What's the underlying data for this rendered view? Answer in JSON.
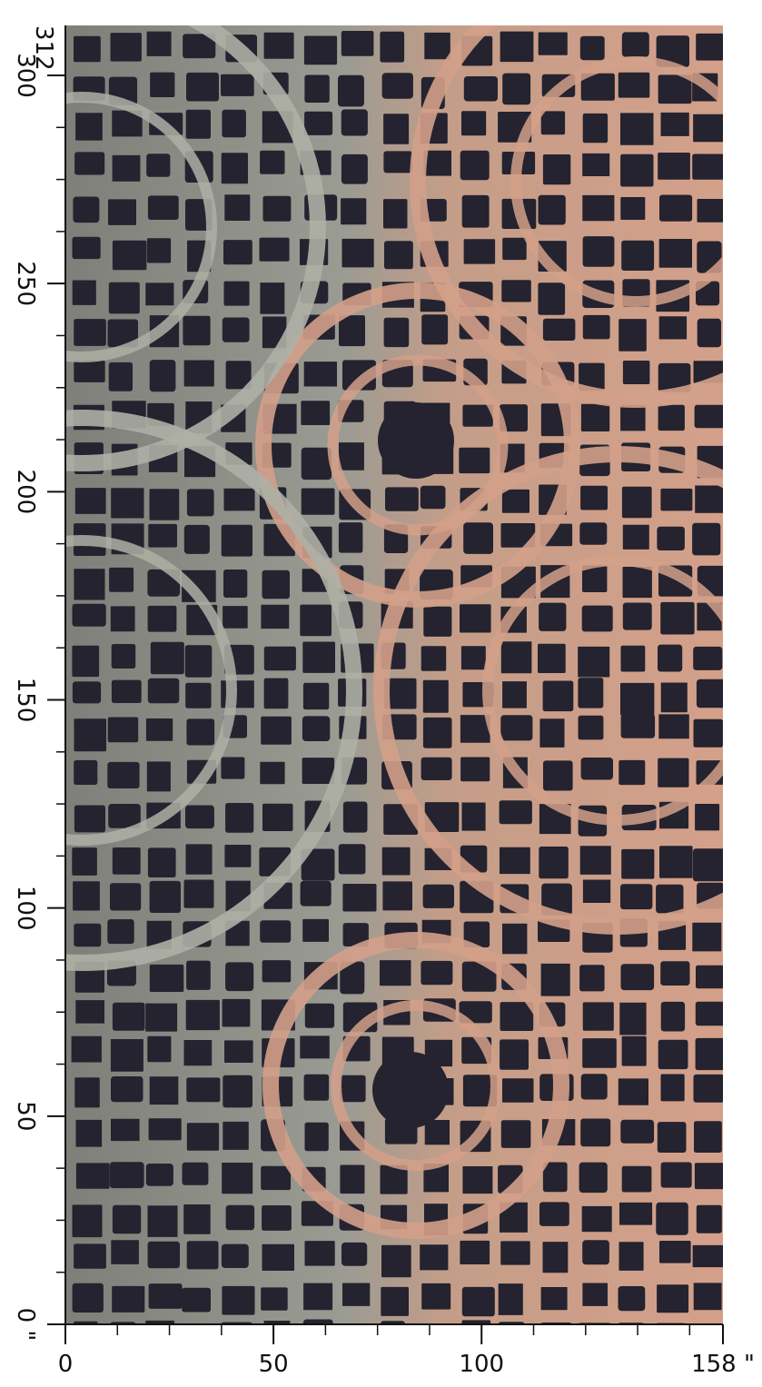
{
  "x_axis": {
    "min": 0,
    "max": 158,
    "unit": "\"",
    "ticks": [
      {
        "value": 0,
        "label": "0"
      },
      {
        "value": 50,
        "label": "50"
      },
      {
        "value": 100,
        "label": "100"
      },
      {
        "value": 158,
        "label": "158 \""
      }
    ]
  },
  "y_axis": {
    "min": 0,
    "max": 312,
    "unit": "\"",
    "ticks": [
      {
        "value": 0,
        "label": "0 \""
      },
      {
        "value": 50,
        "label": "50"
      },
      {
        "value": 100,
        "label": "100"
      },
      {
        "value": 150,
        "label": "150"
      },
      {
        "value": 200,
        "label": "200"
      },
      {
        "value": 250,
        "label": "250"
      },
      {
        "value": 300,
        "label": "300"
      }
    ],
    "max_label": "312"
  },
  "palette": {
    "block": "#24232f",
    "street_gray": "#8a8a84",
    "street_light": "#aeb0a6",
    "street_salmon": "#d3a089",
    "axis": "#111111"
  }
}
